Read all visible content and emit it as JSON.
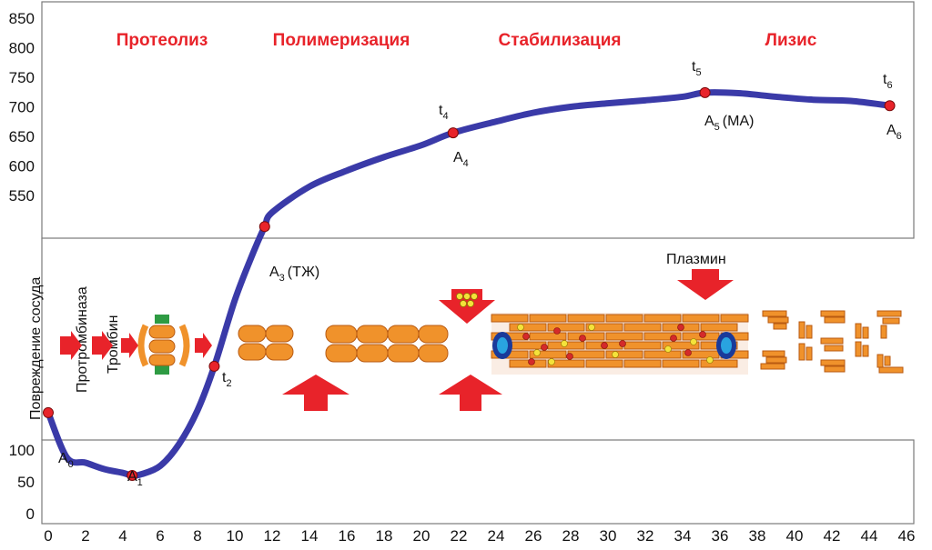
{
  "chart_data": {
    "type": "line",
    "x_ticks": [
      "0",
      "2",
      "4",
      "6",
      "8",
      "10",
      "12",
      "14",
      "16",
      "18",
      "20",
      "22",
      "24",
      "26",
      "28",
      "30",
      "32",
      "34",
      "36",
      "38",
      "40",
      "42",
      "44",
      "46"
    ],
    "y_ticks_upper": [
      "550",
      "600",
      "650",
      "700",
      "750",
      "800",
      "850"
    ],
    "y_ticks_lower": [
      "0",
      "50",
      "100"
    ],
    "phases": [
      "Протеолиз",
      "Полимеризация",
      "Стабилизация",
      "Лизис"
    ],
    "vertical_labels": [
      "Повреждение сосуда",
      "Протромбиназа",
      "Тромбин"
    ],
    "annotations": {
      "plasmin": "Плазмин",
      "a0": "A",
      "a0_sub": "0",
      "a1": "A",
      "a1_sub": "1",
      "t2": "t",
      "t2_sub": "2",
      "a3": "A",
      "a3_sub": "3",
      "a3_tail": "(ТЖ)",
      "t4": "t",
      "t4_sub": "4",
      "a4": "A",
      "a4_sub": "4",
      "t5": "t",
      "t5_sub": "5",
      "a5": "A",
      "a5_sub": "5",
      "a5_tail": "(МА)",
      "t6": "t",
      "t6_sub": "6",
      "a6": "A",
      "a6_sub": "6"
    },
    "series": [
      {
        "color": "#3a3aa8",
        "points": [
          [
            0,
            166
          ],
          [
            1,
            88
          ],
          [
            2,
            80
          ],
          [
            3,
            70
          ],
          [
            4,
            64
          ],
          [
            4.5,
            60
          ],
          [
            5,
            62
          ],
          [
            6,
            75
          ],
          [
            7,
            110
          ],
          [
            8,
            170
          ],
          [
            8.9,
            248
          ],
          [
            10,
            365
          ],
          [
            11,
            450
          ],
          [
            11.6,
            495
          ],
          [
            12,
            520
          ],
          [
            14,
            565
          ],
          [
            16,
            592
          ],
          [
            18,
            615
          ],
          [
            20,
            635
          ],
          [
            21.7,
            656
          ],
          [
            24,
            675
          ],
          [
            26,
            690
          ],
          [
            28,
            700
          ],
          [
            30,
            706
          ],
          [
            32,
            711
          ],
          [
            34,
            717
          ],
          [
            35.2,
            724
          ],
          [
            37,
            723
          ],
          [
            39,
            717
          ],
          [
            41,
            712
          ],
          [
            43,
            710
          ],
          [
            45.1,
            702
          ]
        ]
      }
    ],
    "key_points": [
      {
        "name": "A0",
        "x": 0,
        "y": 166
      },
      {
        "name": "A1",
        "x": 4.5,
        "y": 60
      },
      {
        "name": "t2",
        "x": 8.9,
        "y": 248
      },
      {
        "name": "A3",
        "x": 11.6,
        "y": 495
      },
      {
        "name": "A4",
        "x": 21.7,
        "y": 656
      },
      {
        "name": "A5",
        "x": 35.2,
        "y": 724
      },
      {
        "name": "A6",
        "x": 45.1,
        "y": 702
      }
    ],
    "colors": {
      "curve": "#3a3aa8",
      "point": "#e8232a",
      "phase": "#e8232a",
      "arrow": "#e8232a",
      "fibrin": "#f0922b",
      "fibrin_edge": "#b85a12"
    }
  }
}
